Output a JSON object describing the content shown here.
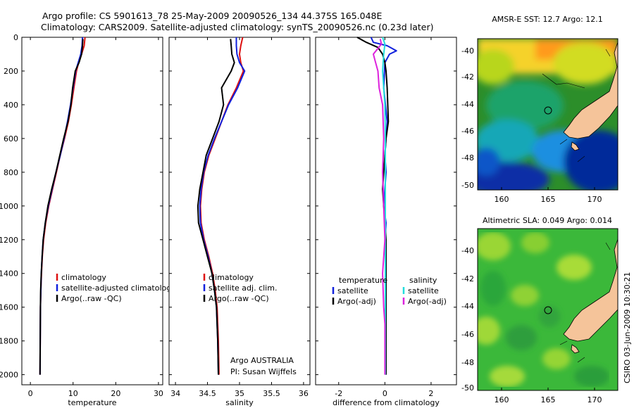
{
  "titles": {
    "line1": "Argo profile: CS 5901613_78 25-May-2009 20090526_134 44.375S 165.048E",
    "line2": "Climatology: CARS2009. Satellite-adjusted climatology: synTS_20090526.nc (0.23d later)"
  },
  "side_text": "CSIRO 03-Jun-2009 10:30:21",
  "credit": {
    "line1": "Argo AUSTRALIA",
    "line2": "PI: Susan Wijffels"
  },
  "colors": {
    "clim": "#dd1010",
    "sat": "#1020dd",
    "argo": "#000000",
    "sat_sal": "#22dddd",
    "argo_sal": "#dd22dd"
  },
  "chart_data": [
    {
      "type": "line",
      "xlabel": "temperature",
      "ylabel": "",
      "xlim": [
        -2,
        31
      ],
      "ylim": [
        2060,
        0
      ],
      "xticks": [
        "0",
        "10",
        "20",
        "30"
      ],
      "yticks": [
        "0",
        "200",
        "400",
        "600",
        "800",
        "1000",
        "1200",
        "1400",
        "1600",
        "1800",
        "2000"
      ],
      "legend": [
        "climatology",
        "satellite-adjusted climatology",
        "Argo(..raw -QC)"
      ],
      "series": [
        {
          "name": "climatology",
          "color": "clim",
          "x": [
            12.8,
            12.6,
            12.0,
            11.3,
            10.8,
            10.2,
            9.6,
            8.9,
            8.0,
            7.0,
            6.1,
            5.2,
            4.3,
            3.6,
            3.1,
            2.8,
            2.6,
            2.45,
            2.35,
            2.3,
            2.25
          ],
          "y": [
            0,
            50,
            100,
            150,
            200,
            300,
            400,
            500,
            600,
            700,
            800,
            900,
            1000,
            1100,
            1200,
            1300,
            1400,
            1500,
            1600,
            1800,
            2000
          ]
        },
        {
          "name": "satellite-adjusted climatology",
          "color": "sat",
          "x": [
            12.2,
            12.1,
            11.8,
            11.2,
            10.6,
            10.0,
            9.4,
            8.7,
            7.9,
            7.0,
            6.0,
            5.1,
            4.2,
            3.5,
            3.0,
            2.75,
            2.55,
            2.45,
            2.35,
            2.3,
            2.25
          ],
          "y": [
            0,
            50,
            100,
            150,
            200,
            300,
            400,
            500,
            600,
            700,
            800,
            900,
            1000,
            1100,
            1200,
            1300,
            1400,
            1500,
            1600,
            1800,
            2000
          ]
        },
        {
          "name": "Argo(..raw -QC)",
          "color": "argo",
          "x": [
            12.3,
            12.2,
            12.0,
            11.4,
            10.5,
            9.9,
            9.5,
            8.8,
            7.8,
            6.9,
            6.0,
            5.0,
            4.1,
            3.5,
            3.0,
            2.75,
            2.55,
            2.4,
            2.35,
            2.3,
            2.25
          ],
          "y": [
            10,
            50,
            100,
            150,
            200,
            300,
            400,
            500,
            600,
            700,
            800,
            900,
            1000,
            1100,
            1200,
            1300,
            1400,
            1500,
            1600,
            1800,
            2000
          ]
        }
      ]
    },
    {
      "type": "line",
      "xlabel": "salinity",
      "ylabel": "",
      "xlim": [
        33.9,
        36.1
      ],
      "ylim": [
        2060,
        0
      ],
      "xticks": [
        "34",
        "34.5",
        "35",
        "35.5",
        "36"
      ],
      "yticks": [],
      "legend": [
        "climatology",
        "satellite adj. clim.",
        "Argo(..raw -QC)"
      ],
      "series": [
        {
          "name": "climatology",
          "color": "clim",
          "x": [
            35.05,
            35.02,
            35.0,
            35.02,
            35.06,
            34.95,
            34.82,
            34.72,
            34.62,
            34.52,
            34.45,
            34.41,
            34.39,
            34.4,
            34.45,
            34.52,
            34.58,
            34.62,
            34.65,
            34.67,
            34.68
          ],
          "y": [
            0,
            50,
            100,
            150,
            200,
            300,
            400,
            500,
            600,
            700,
            800,
            900,
            1000,
            1100,
            1200,
            1300,
            1400,
            1500,
            1600,
            1800,
            2000
          ]
        },
        {
          "name": "satellite adj. clim.",
          "color": "sat",
          "x": [
            34.95,
            34.95,
            34.96,
            35.0,
            35.08,
            34.97,
            34.83,
            34.72,
            34.61,
            34.51,
            34.44,
            34.4,
            34.38,
            34.39,
            34.44,
            34.51,
            34.57,
            34.61,
            34.64,
            34.66,
            34.67
          ],
          "y": [
            0,
            50,
            100,
            150,
            200,
            300,
            400,
            500,
            600,
            700,
            800,
            900,
            1000,
            1100,
            1200,
            1300,
            1400,
            1500,
            1600,
            1800,
            2000
          ]
        },
        {
          "name": "Argo(..raw -QC)",
          "color": "argo",
          "x": [
            34.86,
            34.87,
            34.88,
            34.92,
            34.87,
            34.72,
            34.75,
            34.68,
            34.58,
            34.48,
            34.43,
            34.38,
            34.35,
            34.36,
            34.43,
            34.5,
            34.57,
            34.61,
            34.64,
            34.66,
            34.67
          ],
          "y": [
            10,
            50,
            100,
            150,
            200,
            300,
            400,
            500,
            600,
            700,
            800,
            900,
            1000,
            1100,
            1200,
            1300,
            1400,
            1500,
            1600,
            1800,
            2000
          ]
        }
      ]
    },
    {
      "type": "line",
      "xlabel": "difference from climatology",
      "ylabel": "",
      "xlim": [
        -3,
        3.1
      ],
      "ylim": [
        2060,
        0
      ],
      "xticks": [
        "-2",
        "0",
        "2"
      ],
      "yticks": [],
      "legend": [
        "temperature",
        "satellite",
        "Argo(-adj)",
        "salinity",
        "satellite",
        "Argo(-adj)"
      ],
      "series": [
        {
          "name": "satellite",
          "group": "temperature",
          "color": "sat",
          "x": [
            -0.6,
            -0.5,
            0.1,
            0.5,
            0.2,
            0.0,
            -0.05,
            0.1,
            0.0,
            0.05,
            0.0,
            -0.05,
            0.05,
            0.0,
            0.03,
            0.05,
            0.05,
            0.05,
            0.05,
            0.05,
            0.05
          ],
          "y": [
            0,
            30,
            50,
            80,
            100,
            150,
            300,
            500,
            700,
            800,
            900,
            1000,
            1100,
            1200,
            1300,
            1400,
            1500,
            1600,
            1700,
            1800,
            2000
          ]
        },
        {
          "name": "Argo(-adj)",
          "group": "temperature",
          "color": "argo",
          "x": [
            -1.2,
            -0.8,
            -0.3,
            -0.1,
            0.0,
            0.05,
            0.1,
            0.15,
            0.05,
            -0.1,
            -0.05,
            0.0,
            0.05,
            0.05,
            0.05,
            0.05,
            0.05,
            0.05,
            0.05,
            0.05
          ],
          "y": [
            0,
            30,
            60,
            100,
            150,
            200,
            300,
            500,
            600,
            900,
            1000,
            1100,
            1200,
            1300,
            1400,
            1500,
            1600,
            1700,
            1800,
            2000
          ]
        },
        {
          "name": "satellite",
          "group": "salinity",
          "color": "sat_sal",
          "x": [
            -0.1,
            0.0,
            -0.05,
            -0.1,
            -0.05,
            0.0,
            0.02,
            0.02,
            0.02,
            0.02,
            0.02,
            0.02,
            0.02,
            0.02
          ],
          "y": [
            0,
            40,
            100,
            200,
            300,
            400,
            600,
            800,
            1000,
            1200,
            1400,
            1600,
            1800,
            2000
          ]
        },
        {
          "name": "Argo(-adj)",
          "group": "salinity",
          "color": "argo_sal",
          "x": [
            -0.2,
            -0.15,
            -0.5,
            -0.4,
            -0.3,
            -0.25,
            -0.1,
            -0.05,
            -0.1,
            -0.05,
            0.0,
            -0.1,
            -0.05,
            0.0,
            0.0,
            0.0
          ],
          "y": [
            10,
            40,
            100,
            150,
            200,
            300,
            400,
            600,
            800,
            1000,
            1200,
            1400,
            1600,
            1700,
            1800,
            2000
          ]
        }
      ]
    }
  ],
  "maps": [
    {
      "title": "AMSR-E SST: 12.7 Argo: 12.1",
      "xticks": [
        "160",
        "165",
        "170"
      ],
      "yticks": [
        "-40",
        "-42",
        "-44",
        "-46",
        "-48",
        "-50"
      ]
    },
    {
      "title": "Altimetric SLA: 0.049 Argo: 0.014",
      "xticks": [
        "160",
        "165",
        "170"
      ],
      "yticks": [
        "-40",
        "-42",
        "-44",
        "-46",
        "-48",
        "-50"
      ]
    }
  ]
}
